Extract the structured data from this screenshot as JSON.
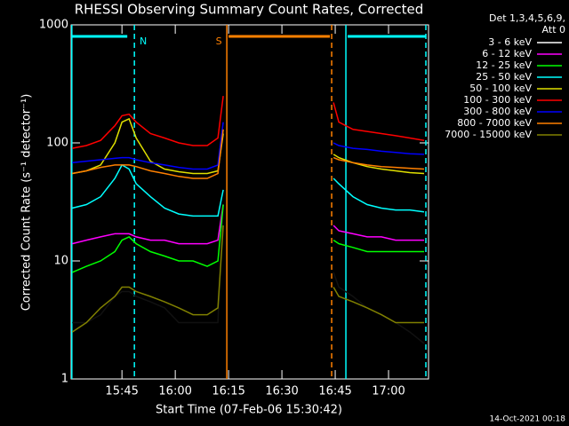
{
  "chart_data": {
    "type": "line",
    "title": "RHESSI Observing Summary Count Rates, Corrected",
    "x_label": "Start Time (07-Feb-06 15:30:42)",
    "y_label": "Corrected Count Rate (s⁻¹ detector⁻¹)",
    "legend_title": [
      "Det 1,3,4,5,6,9,",
      "Att 0"
    ],
    "footer": "14-Oct-2021 00:18",
    "log_y": true,
    "background": "#000000",
    "x": [
      931,
      935,
      939,
      943,
      945,
      947,
      949,
      953,
      957,
      961,
      965,
      969,
      972,
      973.5,
      990,
      1004.5,
      1006,
      1010,
      1014,
      1018,
      1022,
      1026,
      1030
    ],
    "xlim": [
      930.7,
      1031.25
    ],
    "xticks": [
      {
        "value": 945,
        "label": "15:45"
      },
      {
        "value": 960,
        "label": "16:00"
      },
      {
        "value": 975,
        "label": "16:15"
      },
      {
        "value": 990,
        "label": "16:30"
      },
      {
        "value": 1005,
        "label": "16:45"
      },
      {
        "value": 1020,
        "label": "17:00"
      }
    ],
    "ylim": [
      1,
      1000
    ],
    "yticks": [
      1,
      10,
      100,
      1000
    ],
    "series": [
      {
        "name": "3 - 6 keV",
        "color": "#000000",
        "values": [
          3,
          3,
          3.5,
          5,
          5.5,
          5.5,
          5,
          4.5,
          4,
          3,
          3,
          3,
          3,
          30,
          null,
          8,
          6,
          5,
          4,
          3.5,
          3,
          2.5,
          2
        ]
      },
      {
        "name": "6 - 12 keV",
        "color": "#ff00ff",
        "values": [
          14,
          15,
          16,
          17,
          17,
          17,
          16,
          15,
          15,
          14,
          14,
          14,
          15,
          30,
          null,
          20,
          18,
          17,
          16,
          16,
          15,
          15,
          15
        ]
      },
      {
        "name": "12 - 25 keV",
        "color": "#00ff00",
        "values": [
          8,
          9,
          10,
          12,
          15,
          16,
          14,
          12,
          11,
          10,
          10,
          9,
          10,
          30,
          null,
          15,
          14,
          13,
          12,
          12,
          12,
          12,
          12
        ]
      },
      {
        "name": "25 - 50 keV",
        "color": "#00ffff",
        "values": [
          28,
          30,
          35,
          50,
          65,
          60,
          45,
          35,
          28,
          25,
          24,
          24,
          24,
          40,
          null,
          50,
          45,
          35,
          30,
          28,
          27,
          27,
          26
        ]
      },
      {
        "name": "50 - 100 keV",
        "color": "#e0e000",
        "values": [
          55,
          58,
          65,
          100,
          150,
          160,
          110,
          70,
          60,
          57,
          55,
          55,
          58,
          120,
          null,
          80,
          75,
          68,
          63,
          60,
          58,
          56,
          55
        ]
      },
      {
        "name": "100 - 300 keV",
        "color": "#ff0000",
        "values": [
          90,
          95,
          105,
          140,
          170,
          175,
          150,
          120,
          110,
          100,
          95,
          95,
          110,
          250,
          null,
          220,
          150,
          130,
          125,
          120,
          115,
          110,
          105
        ]
      },
      {
        "name": "300 - 800 keV",
        "color": "#0000ff",
        "values": [
          68,
          70,
          72,
          74,
          75,
          75,
          72,
          68,
          65,
          62,
          60,
          60,
          65,
          150,
          null,
          100,
          95,
          90,
          88,
          85,
          83,
          81,
          80
        ]
      },
      {
        "name": "800 - 7000 keV",
        "color": "#ff8000",
        "values": [
          55,
          58,
          62,
          65,
          65,
          65,
          63,
          58,
          55,
          52,
          50,
          50,
          55,
          130,
          null,
          75,
          72,
          68,
          65,
          63,
          62,
          61,
          60
        ]
      },
      {
        "name": "7000 - 15000 keV",
        "color": "#808000",
        "values": [
          2.5,
          3,
          4,
          5,
          6,
          6,
          5.5,
          5,
          4.5,
          4,
          3.5,
          3.5,
          4,
          20,
          null,
          6,
          5,
          4.5,
          4,
          3.5,
          3,
          3,
          3
        ]
      }
    ],
    "annotations": [
      {
        "text": "N",
        "x": 948.5,
        "color": "#00ffff"
      },
      {
        "text": "S",
        "x": 974.5,
        "color": "#ff8000"
      }
    ],
    "intervals": [
      {
        "start": 930.9,
        "end": 946.5,
        "color": "#00ffff"
      },
      {
        "start": 975,
        "end": 1003.5,
        "color": "#ff8000"
      },
      {
        "start": 1008.5,
        "end": 1030.5,
        "color": "#00ffff"
      }
    ],
    "vlines": [
      {
        "x": 930.9,
        "color": "#00ffff",
        "dashed": false
      },
      {
        "x": 948.5,
        "color": "#00ffff",
        "dashed": true
      },
      {
        "x": 974.5,
        "color": "#ff8000",
        "dashed": false
      },
      {
        "x": 1004,
        "color": "#ff8000",
        "dashed": true
      },
      {
        "x": 1008,
        "color": "#00ffff",
        "dashed": false
      },
      {
        "x": 1030.5,
        "color": "#00ffff",
        "dashed": true
      }
    ]
  }
}
